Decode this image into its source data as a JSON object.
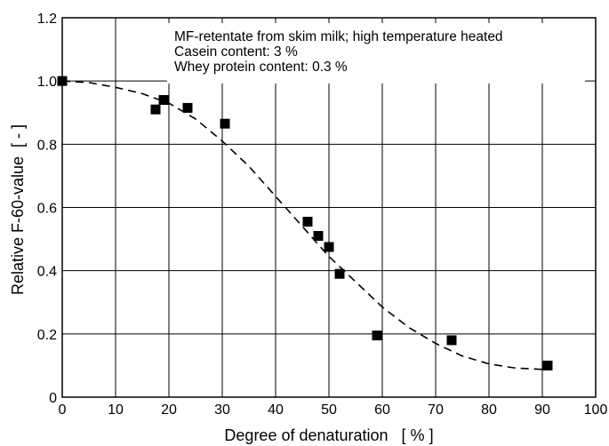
{
  "chart_data": {
    "type": "scatter",
    "title": "",
    "annotations": [
      "MF-retentate from skim milk; high temperature heated",
      "Casein content: 3 %",
      "Whey protein content: 0.3 %"
    ],
    "xlabel": "Degree of denaturation   [ % ]",
    "ylabel": "Relative F-60-value  [ - ]",
    "xlim": [
      0,
      100
    ],
    "ylim": [
      0,
      1.2
    ],
    "xticks": [
      0,
      10,
      20,
      30,
      40,
      50,
      60,
      70,
      80,
      90,
      100
    ],
    "xtick_labels": [
      "0",
      "10",
      "20",
      "30",
      "40",
      "50",
      "60",
      "70",
      "80",
      "90",
      "100"
    ],
    "yticks": [
      0,
      0.2,
      0.4,
      0.6,
      0.8,
      1.0,
      1.2
    ],
    "ytick_labels": [
      "0",
      "0.2",
      "0.4",
      "0.6",
      "0.8",
      "1.0",
      "1.2"
    ],
    "grid": true,
    "legend": "none",
    "series": [
      {
        "marker": "square",
        "color": "#000000",
        "x": [
          0,
          17.5,
          19,
          23.5,
          30.5,
          46,
          48,
          50,
          52,
          59,
          73,
          91
        ],
        "y": [
          1.0,
          0.91,
          0.94,
          0.915,
          0.865,
          0.555,
          0.51,
          0.475,
          0.39,
          0.195,
          0.18,
          0.1
        ]
      },
      {
        "style": "dashed-fit",
        "color": "#000000",
        "x": [
          0,
          5,
          10,
          15,
          20,
          25,
          30,
          35,
          40,
          45,
          50,
          55,
          60,
          65,
          70,
          75,
          80,
          85,
          90
        ],
        "y": [
          1.0,
          0.995,
          0.98,
          0.96,
          0.93,
          0.88,
          0.81,
          0.73,
          0.635,
          0.54,
          0.445,
          0.365,
          0.285,
          0.22,
          0.17,
          0.13,
          0.105,
          0.092,
          0.088
        ]
      }
    ]
  }
}
